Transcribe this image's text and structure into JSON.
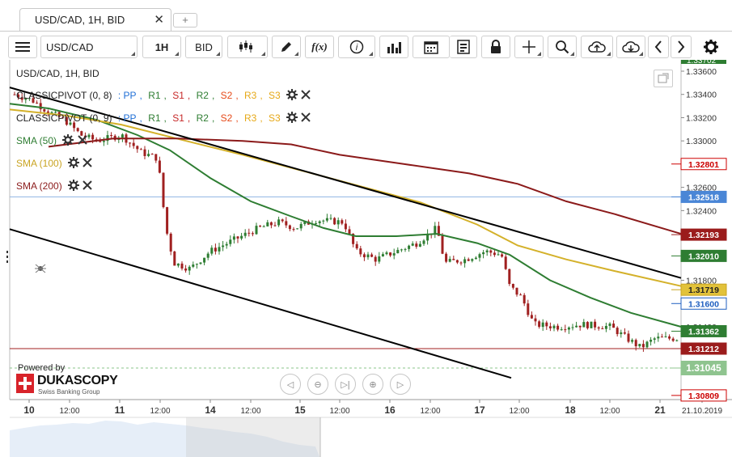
{
  "tab": {
    "title": "USD/CAD, 1H, BID",
    "close": "✕",
    "add": "+"
  },
  "toolbar": {
    "instrument": "USD/CAD",
    "period": "1H",
    "side": "BID",
    "indicators_label": "f(x)",
    "icons": [
      "menu-icon",
      "candle-type-icon",
      "draw-pen-icon",
      "function-icon",
      "info-icon",
      "volume-bars-icon",
      "calendar-icon",
      "report-icon",
      "lock-icon",
      "crosshair-icon",
      "zoom-icon",
      "upload-cloud-icon",
      "download-cloud-icon",
      "prev-icon",
      "next-icon",
      "settings-icon"
    ]
  },
  "chart_header": {
    "title": "USD/CAD, 1H, BID",
    "pivot1": {
      "name": "CLASSICPIVOT (0, 8)",
      "pp": "PP",
      "r1": "R1",
      "s1": "S1",
      "r2": "R2",
      "s2": "S2",
      "r3": "R3",
      "s3": "S3"
    },
    "pivot2": {
      "name": "CLASSICPIVOT (0, 9)",
      "pp": "PP",
      "r1": "R1",
      "s1": "S1",
      "r2": "R2",
      "s2": "S2",
      "r3": "R3",
      "s3": "S3"
    },
    "sma50": "SMA (50)",
    "sma100": "SMA (100)",
    "sma200": "SMA (200)"
  },
  "colors": {
    "pp": "#1f6fd6",
    "r": "#2e7d32",
    "s": "#c62828",
    "r2": "#2e7d32",
    "s2": "#e64a19",
    "r3": "#e6a817",
    "s3": "#e6a817",
    "sma50": "#2e7d32",
    "sma100": "#d4b12a",
    "sma200": "#8b1a1a",
    "candle_up": "#2e7d32",
    "candle_down": "#a02020",
    "trend": "#000000"
  },
  "branding": {
    "powered": "Powered by",
    "name": "DUKASCOPY",
    "sub": "Swiss Banking Group"
  },
  "price_axis": {
    "ticks": [
      "1.33600",
      "1.33400",
      "1.33200",
      "1.33000",
      "1.32600",
      "1.32400",
      "1.31800",
      "1.31400"
    ],
    "top_cut": "1.33702"
  },
  "price_tags": [
    {
      "value": "1.32801",
      "kind": "outline-red"
    },
    {
      "value": "1.32518",
      "kind": "fill-blue"
    },
    {
      "value": "1.32193",
      "kind": "fill-darkred"
    },
    {
      "value": "1.32010",
      "kind": "fill-green"
    },
    {
      "value": "1.31719",
      "kind": "fill-yellow"
    },
    {
      "value": "1.31600",
      "kind": "outline-blue"
    },
    {
      "value": "1.31362",
      "kind": "fill-green"
    },
    {
      "value": "1.31212",
      "kind": "fill-darkred"
    },
    {
      "value": "1.31045",
      "kind": "fill-lightgreen"
    },
    {
      "value": "1.30809",
      "kind": "outline-red"
    }
  ],
  "time_axis": {
    "labels": [
      "10",
      "12:00",
      "11",
      "12:00",
      "14",
      "12:00",
      "15",
      "12:00",
      "16",
      "12:00",
      "17",
      "12:00",
      "18",
      "12:00",
      "21",
      "21.10.2019"
    ],
    "bold": [
      true,
      false,
      true,
      false,
      true,
      false,
      true,
      false,
      true,
      false,
      true,
      false,
      true,
      false,
      true,
      false
    ]
  },
  "nav_controls": [
    "◁",
    "⊖",
    "▷|",
    "⊕",
    "▷"
  ]
}
